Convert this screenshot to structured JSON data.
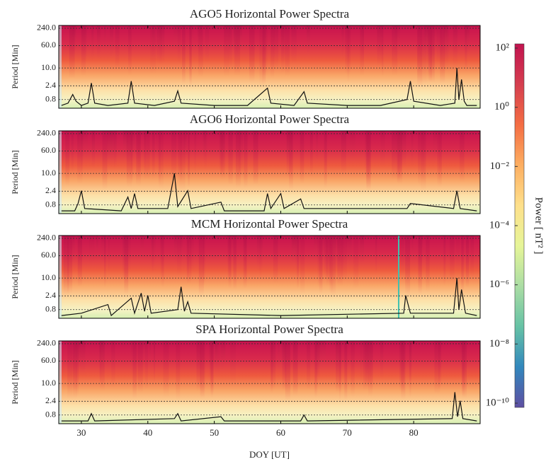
{
  "chart_data": [
    {
      "type": "line",
      "title": "AGO5 Horizontal Power Spectra",
      "ylabel": "Period [Min]",
      "log_scale": true,
      "grid": true,
      "ylim": [
        0.4,
        300
      ],
      "xlim": [
        26.6,
        90
      ],
      "yticks": [
        {
          "value": 240,
          "label": "240.0"
        },
        {
          "value": 60,
          "label": "60.0"
        },
        {
          "value": 10,
          "label": "10.0"
        },
        2.4,
        0.8
      ],
      "x": [
        27,
        28,
        28.7,
        29.2,
        30,
        31,
        31.5,
        32,
        34,
        37,
        37.5,
        38,
        41,
        44,
        44.5,
        45,
        50,
        55,
        58,
        58.5,
        62,
        63.5,
        64,
        70,
        75,
        79,
        79.5,
        80,
        84,
        86.2,
        86.5,
        86.8,
        87.2,
        87.6,
        88,
        89.5
      ],
      "series": [
        {
          "color": "#111111",
          "values": [
            0.5,
            0.6,
            1.2,
            0.7,
            0.5,
            0.6,
            3,
            0.6,
            0.5,
            0.6,
            3.5,
            0.6,
            0.5,
            0.7,
            1.6,
            0.6,
            0.5,
            0.5,
            2,
            0.6,
            0.5,
            1.5,
            0.6,
            0.5,
            0.5,
            0.8,
            3.5,
            0.7,
            0.5,
            0.6,
            10,
            0.8,
            4,
            0.7,
            0.5,
            0.5
          ]
        }
      ]
    },
    {
      "type": "line",
      "title": "AGO6 Horizontal Power Spectra",
      "ylabel": "Period [Min]",
      "log_scale": true,
      "grid": true,
      "ylim": [
        0.4,
        300
      ],
      "xlim": [
        26.6,
        90
      ],
      "yticks": [
        {
          "value": 240,
          "label": "240.0"
        },
        {
          "value": 60,
          "label": "60.0"
        },
        {
          "value": 10,
          "label": "10.0"
        },
        2.4,
        0.8
      ],
      "x": [
        27,
        29,
        29.5,
        30,
        30.5,
        36,
        37,
        37.5,
        38,
        38.5,
        43,
        44,
        44.5,
        46,
        46.5,
        51,
        51.5,
        57.5,
        58,
        58.5,
        60,
        60.5,
        63,
        63.5,
        79,
        79.5,
        86,
        86.5,
        87,
        89.5
      ],
      "series": [
        {
          "color": "#111111",
          "values": [
            0.5,
            0.5,
            0.9,
            2.5,
            0.6,
            0.5,
            1.5,
            0.6,
            2,
            0.6,
            0.6,
            10,
            0.7,
            2.5,
            0.6,
            1,
            0.5,
            0.5,
            2,
            0.6,
            2,
            0.6,
            1.3,
            0.6,
            0.6,
            0.9,
            0.6,
            2.5,
            0.6,
            0.5
          ]
        }
      ]
    },
    {
      "type": "line",
      "title": "MCM Horizontal Power Spectra",
      "ylabel": "Period [Min]",
      "log_scale": true,
      "grid": true,
      "ylim": [
        0.4,
        300
      ],
      "xlim": [
        26.6,
        90
      ],
      "yticks": [
        {
          "value": 240,
          "label": "240.0"
        },
        {
          "value": 60,
          "label": "60.0"
        },
        {
          "value": 10,
          "label": "10.0"
        },
        2.4,
        0.8
      ],
      "x": [
        27,
        30,
        34,
        34.5,
        37.5,
        38,
        39,
        39.5,
        40,
        40.5,
        44.5,
        45,
        45.5,
        46,
        46.5,
        60,
        78.5,
        78.8,
        79.5,
        86,
        86.5,
        86.8,
        87.2,
        87.8,
        89.5
      ],
      "series": [
        {
          "color": "#111111",
          "values": [
            0.5,
            0.6,
            1.2,
            0.5,
            2,
            0.6,
            3,
            0.7,
            2.5,
            0.6,
            0.8,
            5,
            0.7,
            1.5,
            0.6,
            0.5,
            0.6,
            2.5,
            0.6,
            0.6,
            10,
            0.8,
            4,
            0.6,
            0.5
          ]
        }
      ]
    },
    {
      "type": "line",
      "title": "SPA Horizontal Power Spectra",
      "ylabel": "Period [Min]",
      "log_scale": true,
      "grid": true,
      "ylim": [
        0.4,
        300
      ],
      "xlim": [
        26.6,
        90
      ],
      "xlabel": "DOY [UT]",
      "xticks": [
        30,
        40,
        50,
        60,
        70,
        80
      ],
      "yticks": [
        {
          "value": 240,
          "label": "240.0"
        },
        {
          "value": 60,
          "label": "60.0"
        },
        {
          "value": 10,
          "label": "10.0"
        },
        2.4,
        0.8
      ],
      "x": [
        27,
        31,
        31.5,
        32,
        44,
        44.5,
        45,
        51,
        51.5,
        63,
        63.5,
        64,
        85.8,
        86.2,
        86.6,
        87,
        87.4,
        89.5
      ],
      "series": [
        {
          "color": "#111111",
          "values": [
            0.5,
            0.5,
            0.9,
            0.5,
            0.6,
            0.9,
            0.5,
            0.7,
            0.5,
            0.5,
            0.8,
            0.5,
            0.6,
            5,
            0.7,
            2.5,
            0.6,
            0.5
          ]
        }
      ]
    }
  ],
  "colorbar": {
    "label": "Power  [ nT² ]",
    "log_scale": true,
    "clim": [
      1e-10,
      100
    ],
    "colors": [
      "#5e4fa2",
      "#3288bd",
      "#66c2a5",
      "#abdda4",
      "#e6f598",
      "#fee08b",
      "#fdae61",
      "#f46d43",
      "#d53e4f",
      "#c2134f"
    ],
    "ticks": [
      {
        "value": 100,
        "label": "10²"
      },
      {
        "value": 1,
        "label": "10⁰"
      },
      {
        "value": 0.01,
        "label": "10⁻²"
      },
      {
        "value": 0.0001,
        "label": "10⁻⁴"
      },
      {
        "value": 1e-06,
        "label": "10⁻⁶"
      },
      {
        "value": 1e-08,
        "label": "10⁻⁸"
      },
      {
        "value": 1e-10,
        "label": "10⁻¹⁰"
      }
    ]
  }
}
